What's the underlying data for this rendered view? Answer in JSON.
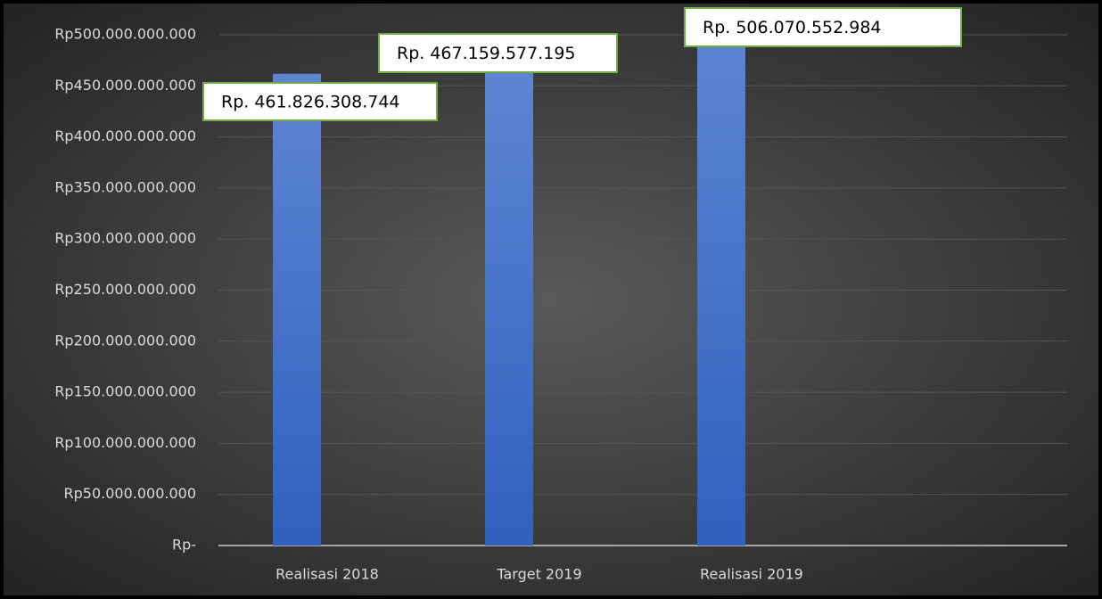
{
  "chart_data": {
    "type": "bar",
    "categories": [
      "Realisasi 2018",
      "Target 2019",
      "Realisasi 2019"
    ],
    "values": [
      461826308744,
      467159577195,
      506070552984
    ],
    "value_labels": [
      "Rp. 461.826.308.744",
      "Rp. 467.159.577.195",
      "Rp. 506.070.552.984"
    ],
    "color": "#4472c4",
    "ylim": [
      0,
      500000000000
    ],
    "yticks": [
      {
        "value": 0,
        "label": "Rp-"
      },
      {
        "value": 50000000000,
        "label": "Rp50.000.000.000"
      },
      {
        "value": 100000000000,
        "label": "Rp100.000.000.000"
      },
      {
        "value": 150000000000,
        "label": "Rp150.000.000.000"
      },
      {
        "value": 200000000000,
        "label": "Rp200.000.000.000"
      },
      {
        "value": 250000000000,
        "label": "Rp250.000.000.000"
      },
      {
        "value": 300000000000,
        "label": "Rp300.000.000.000"
      },
      {
        "value": 350000000000,
        "label": "Rp350.000.000.000"
      },
      {
        "value": 400000000000,
        "label": "Rp400.000.000.000"
      },
      {
        "value": 450000000000,
        "label": "Rp450.000.000.000"
      },
      {
        "value": 500000000000,
        "label": "Rp500.000.000.000"
      }
    ],
    "grid": true
  }
}
